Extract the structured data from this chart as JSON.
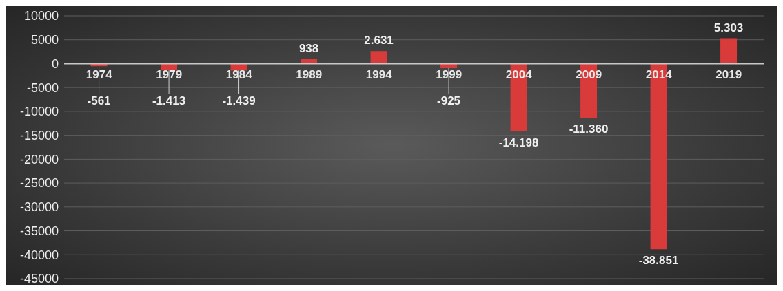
{
  "chart_data": {
    "type": "bar",
    "categories": [
      "1974",
      "1979",
      "1984",
      "1989",
      "1994",
      "1999",
      "2004",
      "2009",
      "2014",
      "2019"
    ],
    "values": [
      -561,
      -1413,
      -1439,
      938,
      2631,
      -925,
      -14198,
      -11360,
      -38851,
      5303
    ],
    "value_labels": [
      "-561",
      "-1.413",
      "-1.439",
      "938",
      "2.631",
      "-925",
      "-14.198",
      "-11.360",
      "-38.851",
      "5.303"
    ],
    "color": "#d93a3a",
    "ylim": [
      -45000,
      10000
    ],
    "yticks": [
      -45000,
      -40000,
      -35000,
      -30000,
      -25000,
      -20000,
      -15000,
      -10000,
      -5000,
      0,
      5000,
      10000
    ],
    "grid": "y"
  }
}
